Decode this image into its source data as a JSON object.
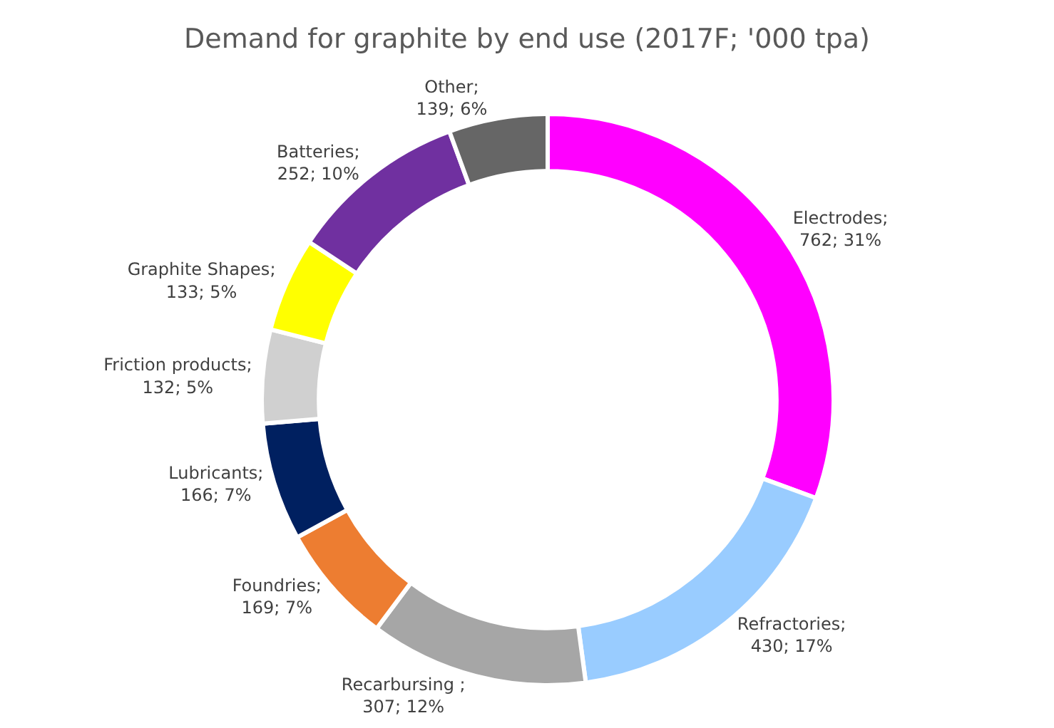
{
  "chart_data": {
    "type": "donut",
    "title": "Demand for graphite by end use (2017F; '000 tpa)",
    "categories": [
      "Electrodes",
      "Refractories",
      "Recarbursing ",
      "Foundries",
      "Lubricants",
      "Friction products",
      "Graphite Shapes",
      "Batteries",
      "Other"
    ],
    "values": [
      762,
      430,
      307,
      169,
      166,
      132,
      133,
      252,
      139
    ],
    "value_labels": [
      "; 762; 31%",
      "; 430; 17%",
      "; 307; 12%",
      "; 169; 7%",
      "; 166; 7%",
      "; 132; 5%",
      "; 133; 5%",
      "; 252; 10%",
      "; 139; 6%"
    ],
    "colors": [
      "#ff00ff",
      "#99ccff",
      "#a6a6a6",
      "#ed7d31",
      "#002060",
      "#d0d0d0",
      "#ffff00",
      "#7030a0",
      "#666666"
    ],
    "legend": false
  }
}
